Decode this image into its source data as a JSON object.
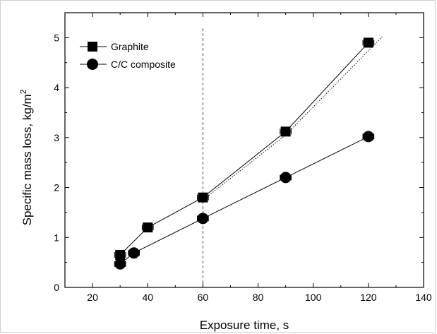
{
  "chart_data": {
    "type": "line",
    "xlabel": "Exposure time, s",
    "ylabel": "Specific mass loss, kg/m",
    "ylabel_superscript": "2",
    "xlim": [
      10,
      140
    ],
    "ylim": [
      0,
      5.5
    ],
    "xticks": [
      20,
      40,
      60,
      80,
      100,
      120,
      140
    ],
    "yticks": [
      0,
      1,
      2,
      3,
      4,
      5
    ],
    "grid": false,
    "legend_position": "top-left",
    "vertical_reference_line": {
      "x": 60,
      "style": "dashed"
    },
    "series": [
      {
        "name": "Graphite",
        "marker": "square",
        "x": [
          30,
          40,
          60,
          90,
          120
        ],
        "y": [
          0.65,
          1.2,
          1.8,
          3.12,
          4.9
        ],
        "x_error": 2
      },
      {
        "name": "C/C composite",
        "marker": "circle",
        "x": [
          30,
          35,
          60,
          90,
          120
        ],
        "y": [
          0.47,
          0.69,
          1.38,
          2.2,
          3.02
        ],
        "x_error": 2
      }
    ],
    "dotted_fit": {
      "x": [
        60,
        90,
        125
      ],
      "y": [
        1.75,
        3.05,
        5.02
      ]
    }
  }
}
